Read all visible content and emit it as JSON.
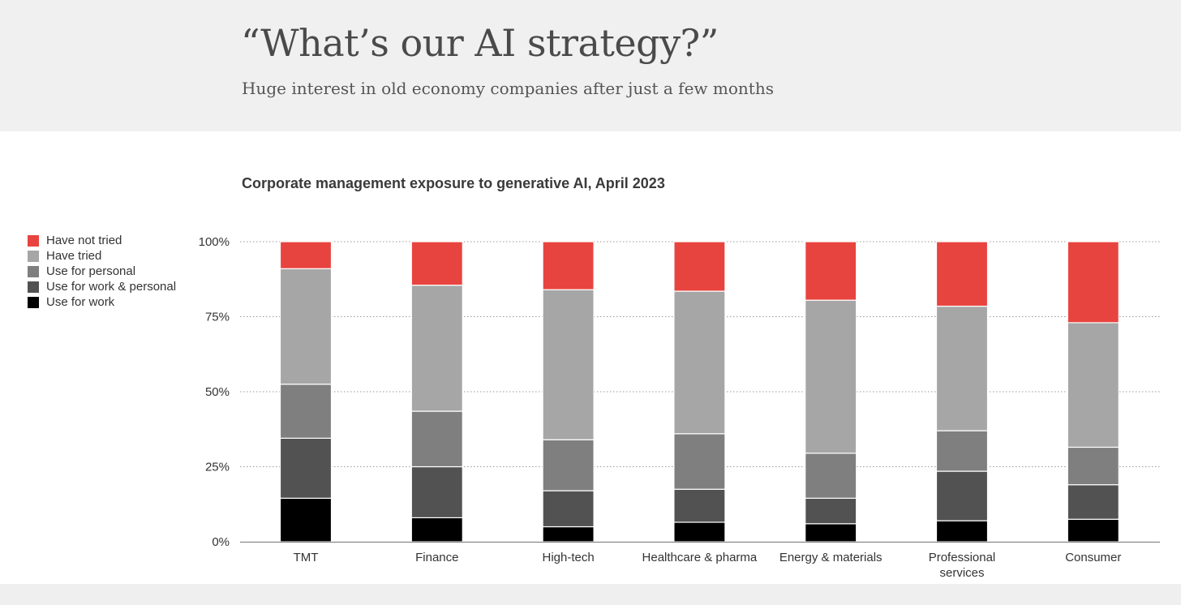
{
  "header": {
    "title": "“What’s our AI strategy?”",
    "subtitle": "Huge interest in old economy companies after just a few months"
  },
  "colors": {
    "have_not_tried": "#e8443f",
    "have_tried": "#a6a6a6",
    "use_for_personal": "#7f7f7f",
    "use_for_work_personal": "#525252",
    "use_for_work": "#000000"
  },
  "chart_data": {
    "type": "bar",
    "stacked": true,
    "title": "Corporate management exposure to generative AI, April 2023",
    "xlabel": "",
    "ylabel": "",
    "ylim": [
      0,
      100
    ],
    "yticks": [
      0,
      25,
      50,
      75,
      100
    ],
    "ytick_labels": [
      "0%",
      "25%",
      "50%",
      "75%",
      "100%"
    ],
    "grid": true,
    "legend_position": "left",
    "categories": [
      "TMT",
      "Finance",
      "High-tech",
      "Healthcare & pharma",
      "Energy & materials",
      "Professional services",
      "Consumer"
    ],
    "category_lines": [
      [
        "TMT"
      ],
      [
        "Finance"
      ],
      [
        "High-tech"
      ],
      [
        "Healthcare & pharma"
      ],
      [
        "Energy & materials"
      ],
      [
        "Professional",
        "services"
      ],
      [
        "Consumer"
      ]
    ],
    "series": [
      {
        "name": "Use for work",
        "color": "#000000",
        "values": [
          14.5,
          8,
          5,
          6.5,
          6,
          7,
          7.5
        ]
      },
      {
        "name": "Use for work & personal",
        "color": "#525252",
        "values": [
          20,
          17,
          12,
          11,
          8.5,
          16.5,
          11.5
        ]
      },
      {
        "name": "Use for personal",
        "color": "#7f7f7f",
        "values": [
          18,
          18.5,
          17,
          18.5,
          15,
          13.5,
          12.5
        ]
      },
      {
        "name": "Have tried",
        "color": "#a6a6a6",
        "values": [
          38.5,
          42,
          50,
          47.5,
          51,
          41.5,
          41.5
        ]
      },
      {
        "name": "Have not tried",
        "color": "#e8443f",
        "values": [
          9,
          14.5,
          16,
          16.5,
          19.5,
          21.5,
          27
        ]
      }
    ],
    "legend": [
      "Have not tried",
      "Have tried",
      "Use for personal",
      "Use for work & personal",
      "Use for work"
    ]
  }
}
